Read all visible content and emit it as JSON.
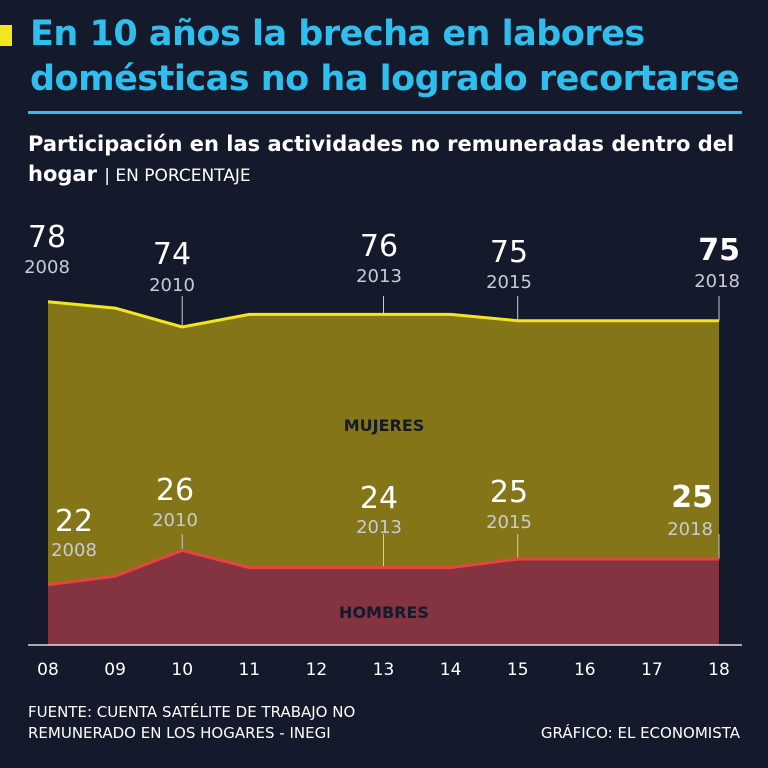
{
  "header": {
    "title": "En 10 años la brecha en labores domésticas no ha logrado recortarse",
    "subtitle": "Participación en las actividades no remuneradas dentro del hogar",
    "unit": "| EN PORCENTAJE"
  },
  "footer": {
    "source": "FUENTE: CUENTA SATÉLITE DE TRABAJO NO REMUNERADO EN LOS HOGARES - INEGI",
    "credit": "GRÁFICO: EL ECONOMISTA"
  },
  "colors": {
    "background": "#14192b",
    "title": "#2fbfee",
    "women_area": "#847519",
    "women_line": "#f4e61c",
    "men_area": "#843340",
    "men_line": "#e8443f",
    "text": "#ffffff",
    "muted": "#c9cbd3",
    "inner_label": "#14192b"
  },
  "chart_data": {
    "type": "area",
    "title": "Participación en las actividades no remuneradas dentro del hogar",
    "unit": "EN PORCENTAJE",
    "x": [
      "08",
      "09",
      "10",
      "11",
      "12",
      "13",
      "14",
      "15",
      "16",
      "17",
      "18"
    ],
    "years": [
      2008,
      2009,
      2010,
      2011,
      2012,
      2013,
      2014,
      2015,
      2016,
      2017,
      2018
    ],
    "ylim": [
      0,
      100
    ],
    "series": [
      {
        "name": "Mujeres",
        "label": "MUJERES",
        "values": [
          78,
          77,
          74,
          76,
          76,
          76,
          76,
          75,
          75,
          75,
          75
        ]
      },
      {
        "name": "Hombres",
        "label": "HOMBRES",
        "values": [
          22,
          23,
          26,
          24,
          24,
          24,
          24,
          25,
          25,
          25,
          25
        ]
      }
    ],
    "annotations": {
      "women": [
        {
          "index": 0,
          "value": "78",
          "year": "2008",
          "bold": false
        },
        {
          "index": 2,
          "value": "74",
          "year": "2010",
          "bold": false
        },
        {
          "index": 5,
          "value": "76",
          "year": "2013",
          "bold": false
        },
        {
          "index": 7,
          "value": "75",
          "year": "2015",
          "bold": false
        },
        {
          "index": 10,
          "value": "75",
          "year": "2018",
          "bold": true
        }
      ],
      "men": [
        {
          "index": 0,
          "value": "22",
          "year": "2008",
          "bold": false
        },
        {
          "index": 2,
          "value": "26",
          "year": "2010",
          "bold": false
        },
        {
          "index": 5,
          "value": "24",
          "year": "2013",
          "bold": false
        },
        {
          "index": 7,
          "value": "25",
          "year": "2015",
          "bold": false
        },
        {
          "index": 10,
          "value": "25",
          "year": "2018",
          "bold": true
        }
      ]
    }
  }
}
